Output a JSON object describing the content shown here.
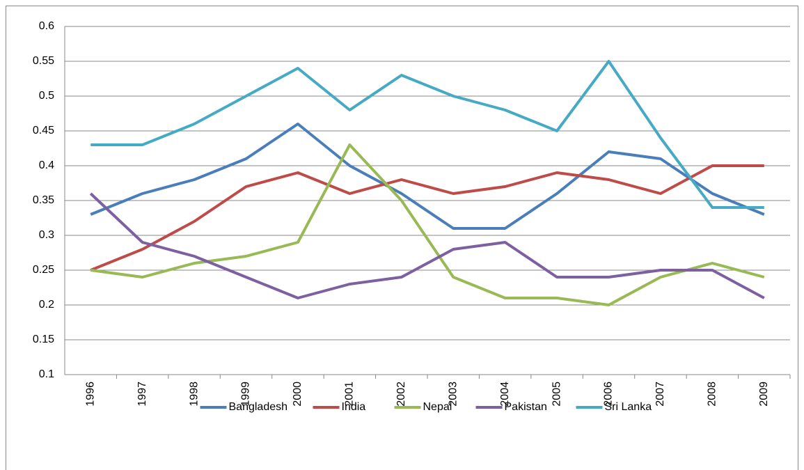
{
  "chart_data": {
    "type": "line",
    "categories": [
      "1996",
      "1997",
      "1998",
      "1999",
      "2000",
      "2001",
      "2002",
      "2003",
      "2004",
      "2005",
      "2006",
      "2007",
      "2008",
      "2009"
    ],
    "series": [
      {
        "name": "Bangladesh",
        "color": "#4a7ebb",
        "values": [
          0.33,
          0.36,
          0.38,
          0.41,
          0.46,
          0.4,
          0.36,
          0.31,
          0.31,
          0.36,
          0.42,
          0.41,
          0.36,
          0.33
        ]
      },
      {
        "name": "India",
        "color": "#be4b48",
        "values": [
          0.25,
          0.28,
          0.32,
          0.37,
          0.39,
          0.36,
          0.38,
          0.36,
          0.37,
          0.39,
          0.38,
          0.36,
          0.4,
          0.4
        ]
      },
      {
        "name": "Nepal",
        "color": "#98b954",
        "values": [
          0.25,
          0.24,
          0.26,
          0.27,
          0.29,
          0.43,
          0.35,
          0.24,
          0.21,
          0.21,
          0.2,
          0.24,
          0.26,
          0.24
        ]
      },
      {
        "name": "Pakistan",
        "color": "#7d60a0",
        "values": [
          0.36,
          0.29,
          0.27,
          0.24,
          0.21,
          0.23,
          0.24,
          0.28,
          0.29,
          0.24,
          0.24,
          0.25,
          0.25,
          0.21
        ]
      },
      {
        "name": "Sri Lanka",
        "color": "#46aac5",
        "values": [
          0.43,
          0.43,
          0.46,
          0.5,
          0.54,
          0.48,
          0.53,
          0.5,
          0.48,
          0.45,
          0.55,
          0.44,
          0.34,
          0.34
        ]
      }
    ],
    "ylim": [
      0.1,
      0.6
    ],
    "yticks": [
      0.1,
      0.15,
      0.2,
      0.25,
      0.3,
      0.35,
      0.4,
      0.45,
      0.5,
      0.55,
      0.6
    ],
    "grid": true,
    "legend": "bottom"
  }
}
